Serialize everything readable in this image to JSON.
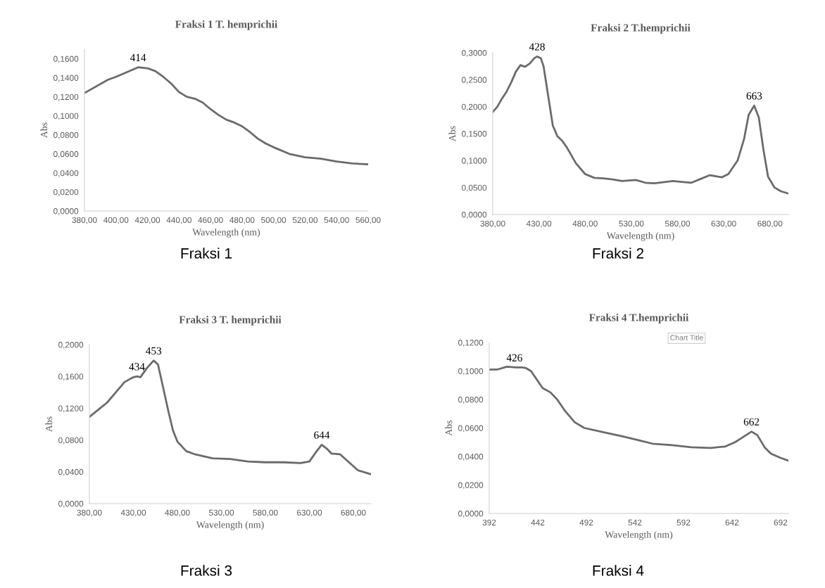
{
  "chart_data": [
    {
      "type": "line",
      "title": "Fraksi 1 T. hemprichii",
      "xlabel": "Wavelength (nm)",
      "ylabel": "Abs",
      "x": [
        380,
        395,
        400,
        414,
        420,
        425,
        430,
        435,
        440,
        445,
        450,
        455,
        460,
        465,
        470,
        475,
        480,
        485,
        490,
        495,
        500,
        510,
        520,
        530,
        540,
        550,
        560
      ],
      "series": [
        {
          "color": "#6b6b6b",
          "values": [
            0.124,
            0.138,
            0.141,
            0.151,
            0.15,
            0.147,
            0.141,
            0.134,
            0.125,
            0.12,
            0.118,
            0.114,
            0.107,
            0.101,
            0.096,
            0.093,
            0.089,
            0.083,
            0.076,
            0.071,
            0.067,
            0.06,
            0.0565,
            0.055,
            0.052,
            0.05,
            0.049
          ]
        }
      ],
      "xlim": [
        380,
        560
      ],
      "xticks": [
        {
          "value": 380,
          "label": "380,00"
        },
        {
          "value": 400,
          "label": "400,00"
        },
        {
          "value": 420,
          "label": "420,00"
        },
        {
          "value": 440,
          "label": "440,00"
        },
        {
          "value": 460,
          "label": "460,00"
        },
        {
          "value": 480,
          "label": "480,00"
        },
        {
          "value": 500,
          "label": "500,00"
        },
        {
          "value": 520,
          "label": "520,00"
        },
        {
          "value": 540,
          "label": "540,00"
        },
        {
          "value": 560,
          "label": "560,00"
        }
      ],
      "ylim": [
        0,
        0.17
      ],
      "yticks": [
        {
          "value": 0,
          "label": "0,0000"
        },
        {
          "value": 0.02,
          "label": "0,0200"
        },
        {
          "value": 0.04,
          "label": "0,0400"
        },
        {
          "value": 0.06,
          "label": "0,0600"
        },
        {
          "value": 0.08,
          "label": "0,0800"
        },
        {
          "value": 0.1,
          "label": "0,1000"
        },
        {
          "value": 0.12,
          "label": "0,1200"
        },
        {
          "value": 0.14,
          "label": "0,1400"
        },
        {
          "value": 0.16,
          "label": "0,1600"
        }
      ],
      "grid": false,
      "marker": "none",
      "line_style": "solid",
      "annotations": [
        {
          "text": "414",
          "x": 414,
          "y": 0.151
        },
        "Fraksi 1"
      ]
    },
    {
      "type": "line",
      "title": "Fraksi 2 T.hemprichii",
      "xlabel": "Wavelength (nm)",
      "ylabel": "Abs",
      "x": [
        380,
        385,
        390,
        395,
        400,
        405,
        410,
        415,
        420,
        425,
        428,
        432,
        435,
        440,
        445,
        450,
        455,
        460,
        470,
        480,
        490,
        500,
        510,
        520,
        535,
        545,
        555,
        575,
        595,
        605,
        615,
        628,
        635,
        645,
        652,
        657,
        663,
        668,
        673,
        678,
        685,
        692,
        700
      ],
      "series": [
        {
          "color": "#6b6b6b",
          "values": [
            0.19,
            0.2,
            0.215,
            0.228,
            0.245,
            0.265,
            0.277,
            0.274,
            0.28,
            0.29,
            0.293,
            0.29,
            0.275,
            0.22,
            0.165,
            0.145,
            0.137,
            0.125,
            0.095,
            0.075,
            0.068,
            0.067,
            0.065,
            0.062,
            0.064,
            0.059,
            0.058,
            0.062,
            0.059,
            0.066,
            0.073,
            0.069,
            0.075,
            0.1,
            0.14,
            0.185,
            0.202,
            0.18,
            0.12,
            0.07,
            0.05,
            0.043,
            0.039
          ]
        }
      ],
      "xlim": [
        380,
        700
      ],
      "xticks": [
        {
          "value": 380,
          "label": "380,00"
        },
        {
          "value": 430,
          "label": "430,00"
        },
        {
          "value": 480,
          "label": "480,00"
        },
        {
          "value": 530,
          "label": "530,00"
        },
        {
          "value": 580,
          "label": "580,00"
        },
        {
          "value": 630,
          "label": "630,00"
        },
        {
          "value": 680,
          "label": "680,00"
        }
      ],
      "ylim": [
        0,
        0.3
      ],
      "yticks": [
        {
          "value": 0,
          "label": "0,0000"
        },
        {
          "value": 0.05,
          "label": "0,0500"
        },
        {
          "value": 0.1,
          "label": "0,1000"
        },
        {
          "value": 0.15,
          "label": "0,1500"
        },
        {
          "value": 0.2,
          "label": "0,2000"
        },
        {
          "value": 0.25,
          "label": "0,2500"
        },
        {
          "value": 0.3,
          "label": "0,3000"
        }
      ],
      "grid": false,
      "marker": "none",
      "line_style": "solid",
      "annotations": [
        {
          "text": "428",
          "x": 428,
          "y": 0.293
        },
        {
          "text": "663",
          "x": 663,
          "y": 0.202
        },
        "Fraksi 2"
      ]
    },
    {
      "type": "line",
      "title": "Fraksi 3 T. hemprichii",
      "xlabel": "Wavelength (nm)",
      "ylabel": "Abs",
      "x": [
        380,
        390,
        400,
        410,
        420,
        430,
        434,
        438,
        445,
        453,
        458,
        465,
        470,
        475,
        480,
        490,
        500,
        520,
        540,
        560,
        580,
        600,
        620,
        630,
        637,
        644,
        650,
        655,
        665,
        675,
        685,
        700
      ],
      "series": [
        {
          "color": "#6b6b6b",
          "values": [
            0.109,
            0.118,
            0.127,
            0.14,
            0.153,
            0.159,
            0.16,
            0.159,
            0.17,
            0.18,
            0.175,
            0.14,
            0.115,
            0.092,
            0.078,
            0.066,
            0.062,
            0.057,
            0.056,
            0.053,
            0.052,
            0.052,
            0.051,
            0.053,
            0.064,
            0.074,
            0.069,
            0.063,
            0.062,
            0.052,
            0.042,
            0.037
          ]
        }
      ],
      "xlim": [
        380,
        700
      ],
      "xticks": [
        {
          "value": 380,
          "label": "380,00"
        },
        {
          "value": 430,
          "label": "430,00"
        },
        {
          "value": 480,
          "label": "480,00"
        },
        {
          "value": 530,
          "label": "530,00"
        },
        {
          "value": 580,
          "label": "580,00"
        },
        {
          "value": 630,
          "label": "630,00"
        },
        {
          "value": 680,
          "label": "680,00"
        }
      ],
      "ylim": [
        0,
        0.2
      ],
      "yticks": [
        {
          "value": 0,
          "label": "0,0000"
        },
        {
          "value": 0.04,
          "label": "0,0400"
        },
        {
          "value": 0.08,
          "label": "0,0800"
        },
        {
          "value": 0.12,
          "label": "0,1200"
        },
        {
          "value": 0.16,
          "label": "0,1600"
        },
        {
          "value": 0.2,
          "label": "0,2000"
        }
      ],
      "grid": false,
      "marker": "none",
      "line_style": "solid",
      "annotations": [
        {
          "text": "434",
          "x": 434,
          "y": 0.16
        },
        {
          "text": "453",
          "x": 453,
          "y": 0.18
        },
        {
          "text": "644",
          "x": 644,
          "y": 0.074
        },
        "Fraksi 3"
      ]
    },
    {
      "type": "line",
      "title": "Fraksi 4 T.hemprichii",
      "xlabel": "Wavelength (nm)",
      "ylabel": "Abs",
      "x": [
        392,
        400,
        410,
        420,
        426,
        430,
        435,
        442,
        447,
        455,
        462,
        470,
        480,
        490,
        510,
        530,
        545,
        560,
        580,
        600,
        620,
        635,
        645,
        652,
        662,
        668,
        676,
        682,
        692,
        700
      ],
      "series": [
        {
          "color": "#6b6b6b",
          "values": [
            0.101,
            0.101,
            0.103,
            0.1025,
            0.1025,
            0.102,
            0.1,
            0.093,
            0.088,
            0.085,
            0.08,
            0.072,
            0.064,
            0.06,
            0.057,
            0.054,
            0.0515,
            0.049,
            0.048,
            0.0465,
            0.046,
            0.047,
            0.05,
            0.053,
            0.0575,
            0.055,
            0.046,
            0.042,
            0.039,
            0.037
          ]
        }
      ],
      "xlim": [
        392,
        700
      ],
      "xticks": [
        392,
        442,
        492,
        542,
        592,
        642,
        692
      ],
      "ylim": [
        0,
        0.12
      ],
      "yticks": [
        {
          "value": 0,
          "label": "0,0000"
        },
        {
          "value": 0.02,
          "label": "0,0200"
        },
        {
          "value": 0.04,
          "label": "0,0400"
        },
        {
          "value": 0.06,
          "label": "0,0600"
        },
        {
          "value": 0.08,
          "label": "0,0800"
        },
        {
          "value": 0.1,
          "label": "0,1000"
        },
        {
          "value": 0.12,
          "label": "0,1200"
        }
      ],
      "grid": false,
      "marker": "none",
      "line_style": "solid",
      "annotations": [
        {
          "text": "426",
          "x": 418,
          "y": 0.1025
        },
        {
          "text": "662",
          "x": 662,
          "y": 0.0575
        },
        "Fraksi 4",
        "Chart Title"
      ]
    }
  ]
}
